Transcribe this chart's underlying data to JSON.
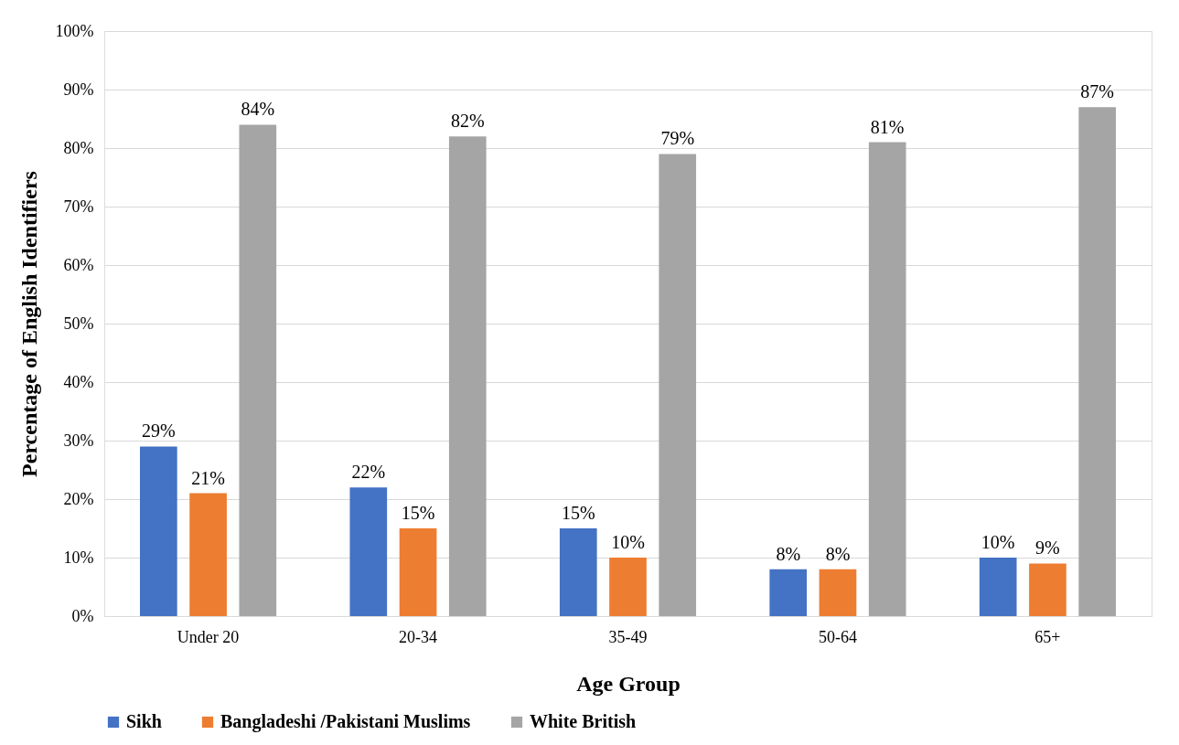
{
  "chart_data": {
    "type": "bar",
    "xlabel": "Age Group",
    "ylabel": "Percentage of English Identifiers",
    "categories": [
      "Under 20",
      "20-34",
      "35-49",
      "50-64",
      "65+"
    ],
    "series": [
      {
        "name": "Sikh",
        "color": "#4472c4",
        "values": [
          29,
          22,
          15,
          8,
          10
        ],
        "value_labels": [
          "29%",
          "22%",
          "15%",
          "8%",
          "10%"
        ]
      },
      {
        "name": "Bangladeshi /Pakistani Muslims",
        "color": "#ed7d31",
        "values": [
          21,
          15,
          10,
          8,
          9
        ],
        "value_labels": [
          "21%",
          "15%",
          "10%",
          "8%",
          "9%"
        ]
      },
      {
        "name": "White British",
        "color": "#a5a5a5",
        "values": [
          84,
          82,
          79,
          81,
          87
        ],
        "value_labels": [
          "84%",
          "82%",
          "79%",
          "81%",
          "87%"
        ]
      }
    ],
    "ylim": [
      0,
      100
    ],
    "yticks": [
      {
        "value": 0,
        "label": "0%"
      },
      {
        "value": 10,
        "label": "10%"
      },
      {
        "value": 20,
        "label": "20%"
      },
      {
        "value": 30,
        "label": "30%"
      },
      {
        "value": 40,
        "label": "40%"
      },
      {
        "value": 50,
        "label": "50%"
      },
      {
        "value": 60,
        "label": "60%"
      },
      {
        "value": 70,
        "label": "70%"
      },
      {
        "value": 80,
        "label": "80%"
      },
      {
        "value": 90,
        "label": "90%"
      },
      {
        "value": 100,
        "label": "100%"
      }
    ],
    "grid": "y",
    "legend": "bottom"
  }
}
